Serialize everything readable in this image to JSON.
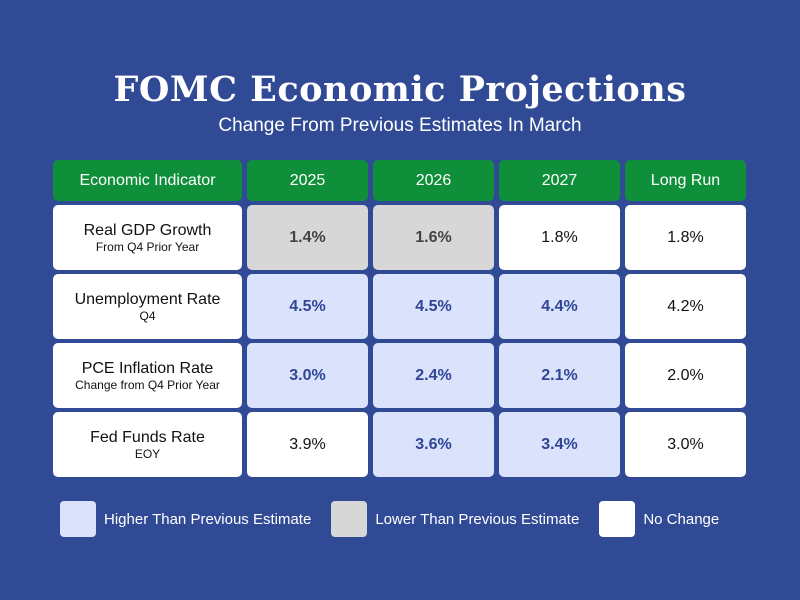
{
  "chart_data": {
    "type": "table",
    "title": "FOMC Economic Projections",
    "subtitle": "Change From Previous Estimates In March",
    "header": [
      "Economic Indicator",
      "2025",
      "2026",
      "2027",
      "Long Run"
    ],
    "rows": [
      {
        "name": "Real GDP Growth",
        "sub": "From Q4 Prior Year",
        "values": [
          "1.4%",
          "1.6%",
          "1.8%",
          "1.8%"
        ],
        "status": [
          "lower",
          "lower",
          "same",
          "same"
        ]
      },
      {
        "name": "Unemployment Rate",
        "sub": "Q4",
        "values": [
          "4.5%",
          "4.5%",
          "4.4%",
          "4.2%"
        ],
        "status": [
          "higher",
          "higher",
          "higher",
          "same"
        ]
      },
      {
        "name": "PCE Inflation Rate",
        "sub": "Change from Q4 Prior Year",
        "values": [
          "3.0%",
          "2.4%",
          "2.1%",
          "2.0%"
        ],
        "status": [
          "higher",
          "higher",
          "higher",
          "same"
        ]
      },
      {
        "name": "Fed Funds Rate",
        "sub": "EOY",
        "values": [
          "3.9%",
          "3.6%",
          "3.4%",
          "3.0%"
        ],
        "status": [
          "same",
          "higher",
          "higher",
          "same"
        ]
      }
    ],
    "legend": [
      {
        "key": "higher",
        "label": "Higher Than Previous Estimate",
        "color": "#dbe2fb"
      },
      {
        "key": "lower",
        "label": "Lower Than Previous Estimate",
        "color": "#d7d7d7"
      },
      {
        "key": "same",
        "label": "No Change",
        "color": "#ffffff"
      }
    ]
  },
  "colors": {
    "background": "#314a95",
    "header": "#0f8f39",
    "higher_text": "#2f4696"
  }
}
